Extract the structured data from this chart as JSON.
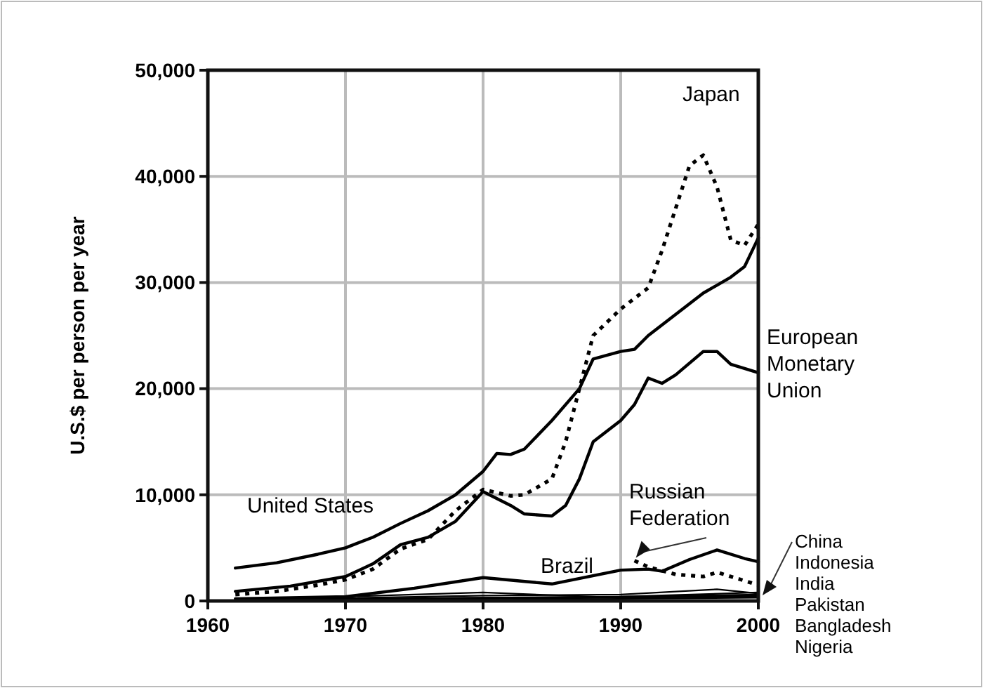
{
  "chart_data": {
    "type": "line",
    "ylabel": "U.S.$ per person per year",
    "xlim": [
      1960,
      2000
    ],
    "xticks": [
      1960,
      1970,
      1980,
      1990,
      2000
    ],
    "ylim": [
      0,
      50000
    ],
    "yticks": [
      0,
      {
        "value": 10000,
        "label": "10,000"
      },
      {
        "value": 20000,
        "label": "20,000"
      },
      {
        "value": 30000,
        "label": "30,000"
      },
      {
        "value": 40000,
        "label": "40,000"
      },
      {
        "value": 50000,
        "label": "50,000"
      }
    ],
    "grid": true,
    "legend": false,
    "marker": "none",
    "series": [
      {
        "name": "United States",
        "color": "#000000",
        "line_style": "solid",
        "x": [
          1962,
          1965,
          1968,
          1970,
          1972,
          1974,
          1976,
          1978,
          1980,
          1981,
          1982,
          1983,
          1985,
          1987,
          1988,
          1990,
          1991,
          1992,
          1994,
          1996,
          1998,
          1999,
          2000
        ],
        "values": [
          3100,
          3600,
          4400,
          5000,
          6000,
          7300,
          8500,
          10000,
          12200,
          13900,
          13800,
          14300,
          17000,
          20000,
          22800,
          23500,
          23700,
          25000,
          27000,
          29000,
          30500,
          31500,
          34200
        ]
      },
      {
        "name": "Japan",
        "color": "#000000",
        "line_style": "dotted",
        "x": [
          1962,
          1965,
          1968,
          1970,
          1972,
          1974,
          1976,
          1978,
          1980,
          1982,
          1983,
          1985,
          1986,
          1987,
          1988,
          1990,
          1992,
          1993,
          1995,
          1996,
          1997,
          1998,
          1999,
          2000
        ],
        "values": [
          600,
          900,
          1500,
          2000,
          3000,
          4900,
          5800,
          8500,
          10500,
          9900,
          10000,
          11500,
          15000,
          20000,
          25000,
          27500,
          29500,
          33000,
          41000,
          42000,
          39000,
          34000,
          33500,
          35500
        ]
      },
      {
        "name": "European Monetary Union",
        "color": "#000000",
        "line_style": "solid",
        "x": [
          1962,
          1966,
          1970,
          1972,
          1974,
          1976,
          1978,
          1980,
          1982,
          1983,
          1985,
          1986,
          1987,
          1988,
          1990,
          1991,
          1992,
          1993,
          1994,
          1996,
          1997,
          1998,
          2000
        ],
        "values": [
          900,
          1400,
          2300,
          3500,
          5300,
          6000,
          7500,
          10300,
          9000,
          8200,
          8000,
          9000,
          11500,
          15000,
          17000,
          18500,
          21000,
          20500,
          21300,
          23500,
          23500,
          22300,
          21500
        ]
      },
      {
        "name": "Brazil",
        "color": "#000000",
        "line_style": "solid",
        "x": [
          1962,
          1970,
          1975,
          1980,
          1985,
          1990,
          1992,
          1993,
          1995,
          1997,
          1999,
          2000
        ],
        "values": [
          200,
          400,
          1200,
          2200,
          1600,
          2900,
          3000,
          2800,
          3900,
          4800,
          4000,
          3700
        ]
      },
      {
        "name": "Russian Federation",
        "color": "#000000",
        "line_style": "dotted",
        "x": [
          1991,
          1992,
          1994,
          1996,
          1997,
          1999,
          2000
        ],
        "values": [
          3800,
          3200,
          2500,
          2300,
          2700,
          1900,
          1500
        ]
      },
      {
        "name": "China",
        "color": "#000000",
        "line_style": "solid",
        "x": [
          1962,
          1980,
          1990,
          2000
        ],
        "values": [
          100,
          300,
          400,
          800
        ]
      },
      {
        "name": "Indonesia",
        "color": "#000000",
        "line_style": "solid",
        "x": [
          1962,
          1980,
          1990,
          1997,
          2000
        ],
        "values": [
          100,
          500,
          600,
          1100,
          700
        ]
      },
      {
        "name": "India",
        "color": "#000000",
        "line_style": "solid",
        "x": [
          1962,
          1980,
          1990,
          2000
        ],
        "values": [
          100,
          200,
          300,
          500
        ]
      },
      {
        "name": "Pakistan",
        "color": "#000000",
        "line_style": "solid",
        "x": [
          1962,
          1980,
          1990,
          2000
        ],
        "values": [
          100,
          300,
          400,
          600
        ]
      },
      {
        "name": "Bangladesh",
        "color": "#000000",
        "line_style": "solid",
        "x": [
          1962,
          1980,
          1990,
          2000
        ],
        "values": [
          0,
          100,
          200,
          300
        ]
      },
      {
        "name": "Nigeria",
        "color": "#000000",
        "line_style": "solid",
        "x": [
          1962,
          1980,
          1990,
          2000
        ],
        "values": [
          100,
          800,
          300,
          400
        ]
      }
    ]
  }
}
